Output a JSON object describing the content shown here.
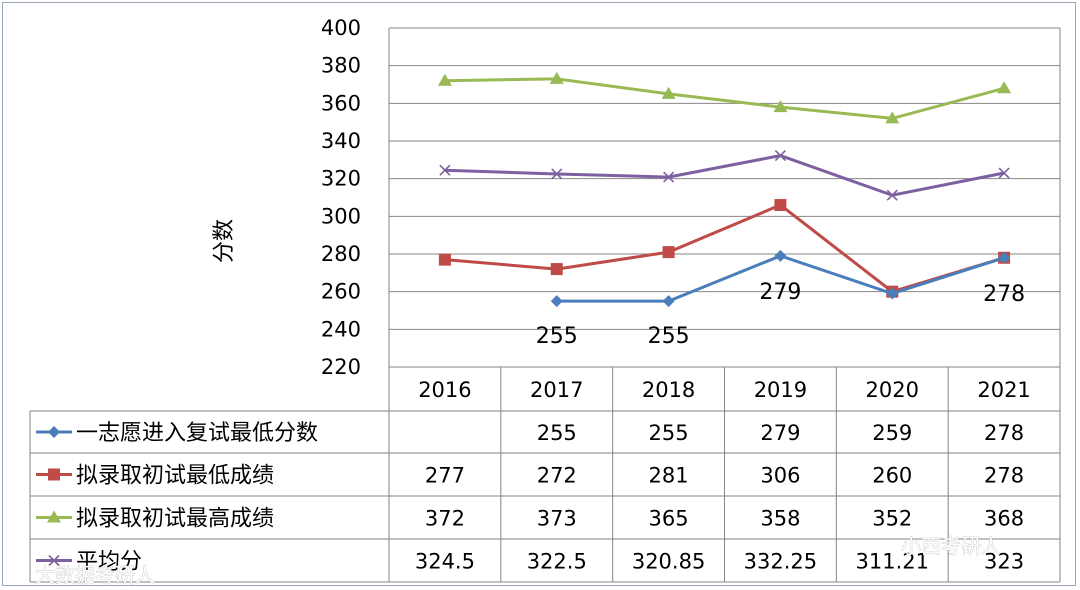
{
  "chart_data": {
    "type": "line",
    "ylabel": "分数",
    "ylim": [
      220,
      400
    ],
    "ytick_step": 20,
    "grid": true,
    "categories": [
      "2016",
      "2017",
      "2018",
      "2019",
      "2020",
      "2021"
    ],
    "series": [
      {
        "name": "一志愿进入复试最低分数",
        "color": "#4a7ebb",
        "marker": "diamond",
        "values": [
          null,
          255,
          255,
          279,
          259,
          278
        ]
      },
      {
        "name": "拟录取初试最低成绩",
        "color": "#be4b48",
        "marker": "square",
        "values": [
          277,
          272,
          281,
          306,
          260,
          278
        ]
      },
      {
        "name": "拟录取初试最高成绩",
        "color": "#98b954",
        "marker": "triangle",
        "values": [
          372,
          373,
          365,
          358,
          352,
          368
        ]
      },
      {
        "name": "平均分",
        "color": "#7d60a0",
        "marker": "x",
        "values": [
          324.5,
          322.5,
          320.85,
          332.25,
          311.21,
          323
        ]
      }
    ],
    "table": [
      [
        "",
        "255",
        "255",
        "279",
        "259",
        "278"
      ],
      [
        "277",
        "272",
        "281",
        "306",
        "260",
        "278"
      ],
      [
        "372",
        "373",
        "365",
        "358",
        "352",
        "368"
      ],
      [
        "324.5",
        "322.5",
        "320.85",
        "332.25",
        "311.21",
        "323"
      ]
    ],
    "annotations": [
      {
        "category": "2017",
        "text": "255"
      },
      {
        "category": "2018",
        "text": "255"
      },
      {
        "category": "2019",
        "text": "279"
      },
      {
        "category": "2021",
        "text": "278"
      }
    ]
  },
  "watermarks": [
    "大数据考研人",
    "小西考研人"
  ]
}
